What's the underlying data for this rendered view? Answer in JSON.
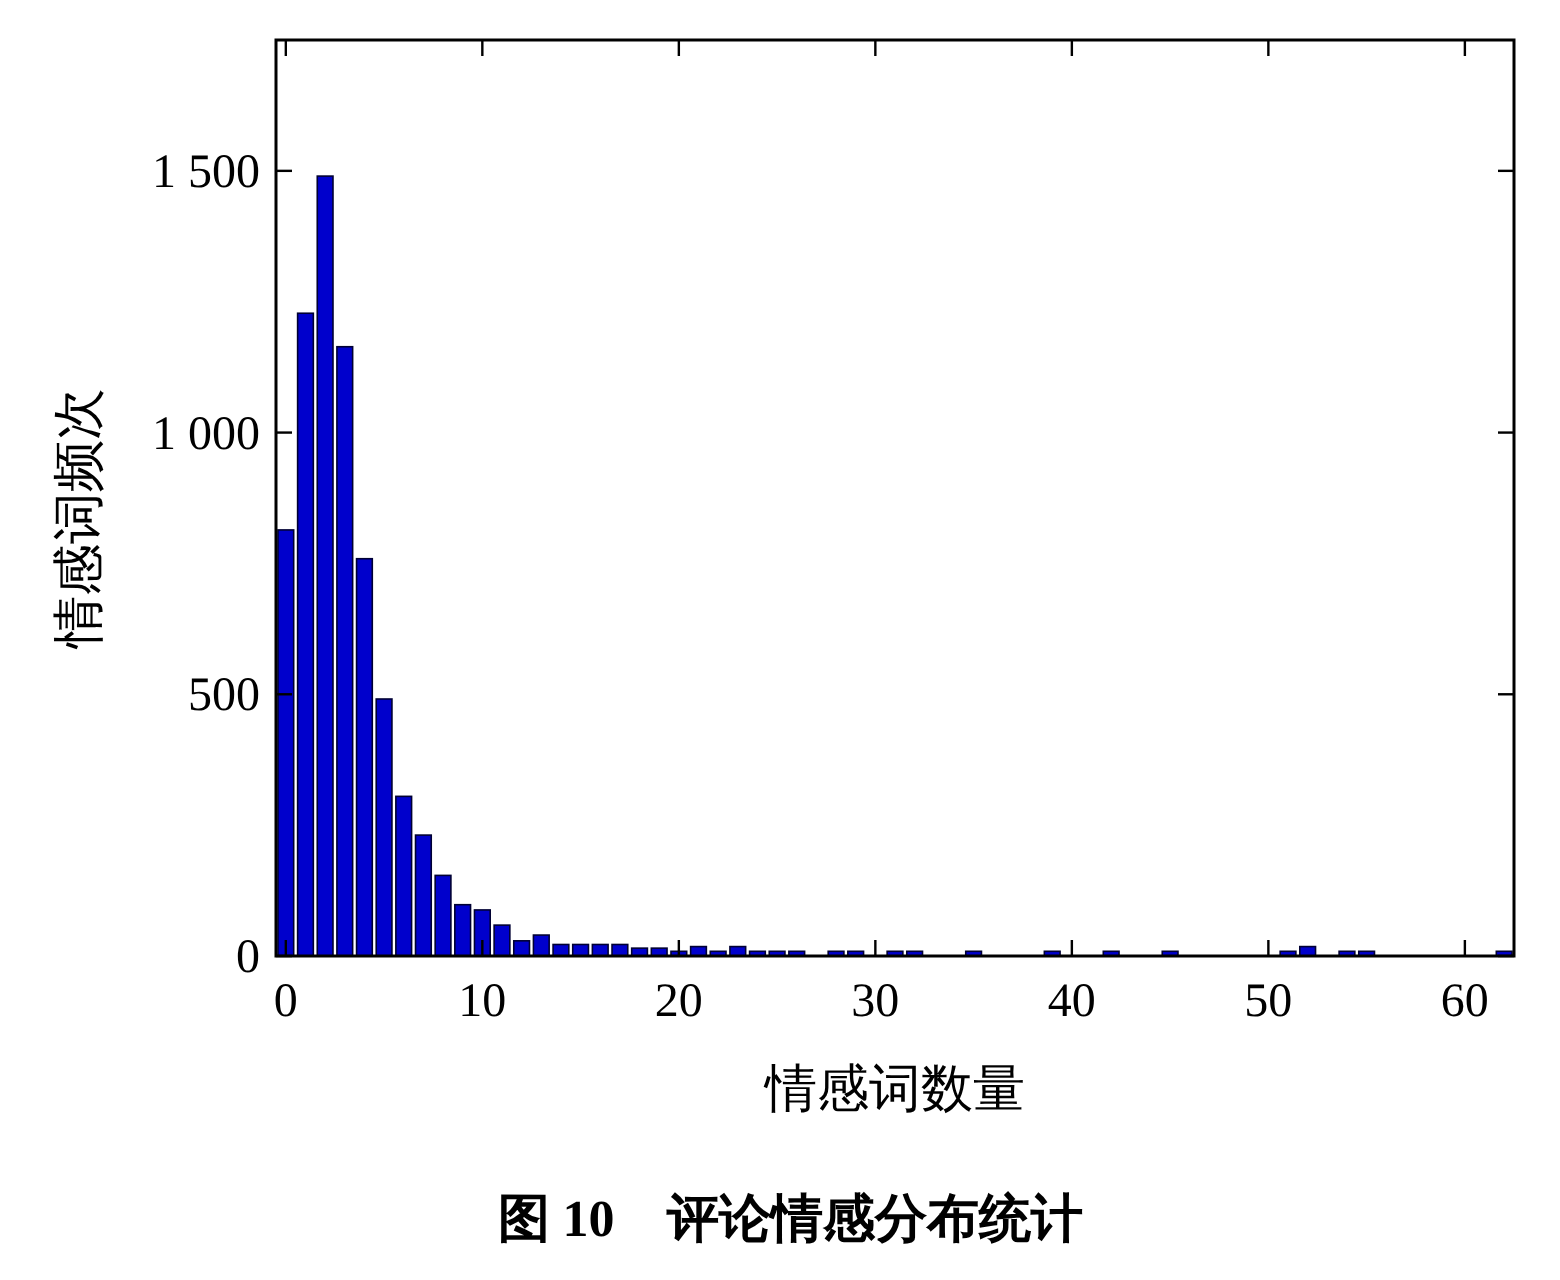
{
  "chart_data": {
    "type": "bar",
    "title": "图 10    评论情感分布统计",
    "xlabel": "情感词数量",
    "ylabel": "情感词频次",
    "x": [
      0,
      1,
      2,
      3,
      4,
      5,
      6,
      7,
      8,
      9,
      10,
      11,
      12,
      13,
      14,
      15,
      16,
      17,
      18,
      19,
      20,
      21,
      22,
      23,
      24,
      25,
      26,
      27,
      28,
      29,
      30,
      31,
      32,
      33,
      34,
      35,
      36,
      37,
      38,
      39,
      40,
      41,
      42,
      43,
      44,
      45,
      46,
      47,
      48,
      49,
      50,
      51,
      52,
      53,
      54,
      55,
      56,
      57,
      58,
      59,
      60,
      61,
      62
    ],
    "values": [
      814,
      1228,
      1490,
      1164,
      759,
      491,
      305,
      231,
      154,
      98,
      88,
      59,
      29,
      40,
      22,
      22,
      22,
      22,
      15,
      15,
      9,
      18,
      9,
      18,
      9,
      9,
      9,
      0,
      9,
      9,
      0,
      9,
      9,
      0,
      0,
      9,
      0,
      0,
      0,
      9,
      0,
      0,
      9,
      0,
      0,
      9,
      0,
      0,
      0,
      0,
      0,
      9,
      18,
      0,
      9,
      9,
      0,
      0,
      0,
      0,
      0,
      0,
      9
    ],
    "color": "#0000cc",
    "xlim": [
      -0.5,
      62.5
    ],
    "xticks": [
      0,
      10,
      20,
      30,
      40,
      50,
      60
    ],
    "ylim": [
      0,
      1750
    ],
    "yticks": [
      0,
      500,
      {
        "value": 1000,
        "label": "1 000"
      },
      {
        "value": 1500,
        "label": "1 500"
      }
    ],
    "grid": false
  }
}
